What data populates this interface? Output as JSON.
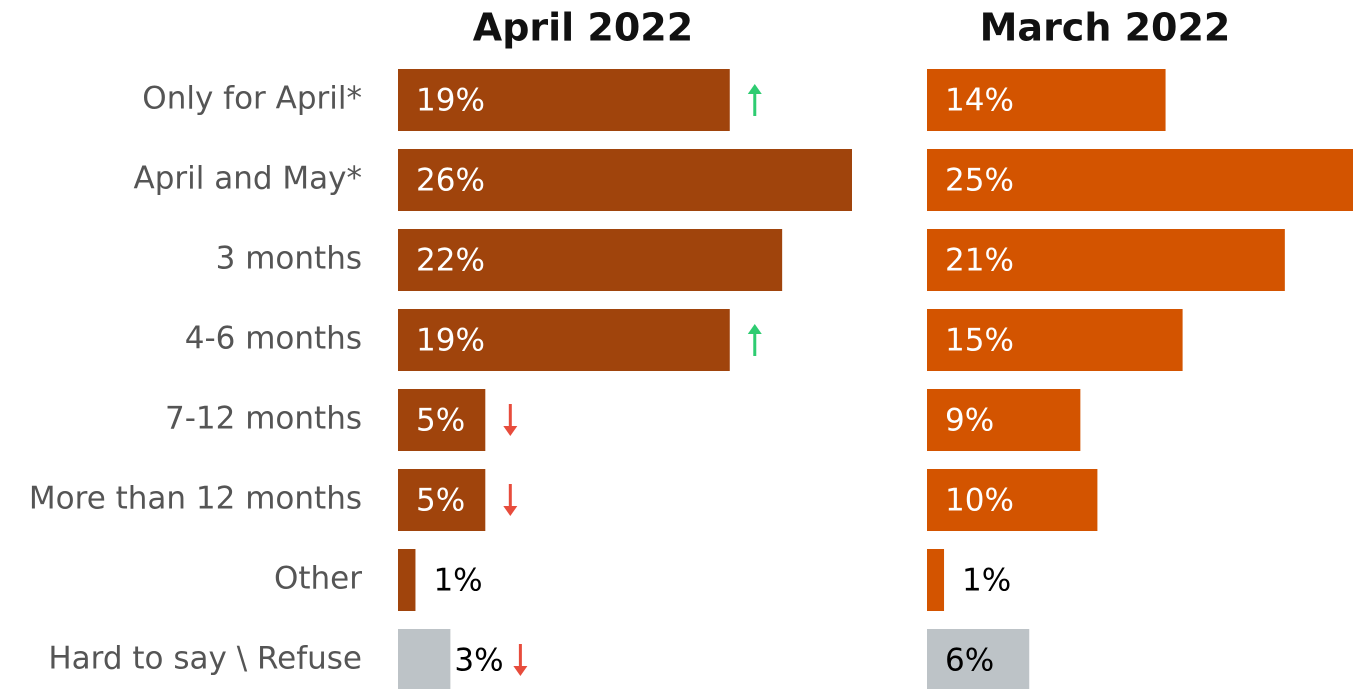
{
  "chart_data": {
    "type": "bar",
    "orientation": "horizontal",
    "categories": [
      "Only for April*",
      "April and May*",
      "3 months",
      "4-6 months",
      "7-12 months",
      "More than 12 months",
      "Other",
      "Hard to say \\ Refuse"
    ],
    "series": [
      {
        "name": "April 2022",
        "colors": [
          "#a0440c",
          "#a0440c",
          "#a0440c",
          "#a0440c",
          "#a0440c",
          "#a0440c",
          "#a0440c",
          "#bdc3c7"
        ],
        "values": [
          19,
          26,
          22,
          19,
          5,
          5,
          1,
          3
        ],
        "value_labels": [
          "19%",
          "26%",
          "22%",
          "19%",
          "5%",
          "5%",
          "1%",
          "3%"
        ],
        "changes": [
          "up",
          null,
          null,
          "up",
          "down",
          "down",
          null,
          "down"
        ]
      },
      {
        "name": "March 2022",
        "colors": [
          "#d35400",
          "#d35400",
          "#d35400",
          "#d35400",
          "#d35400",
          "#d35400",
          "#d35400",
          "#bdc3c7"
        ],
        "values": [
          14,
          25,
          21,
          15,
          9,
          10,
          1,
          6
        ],
        "value_labels": [
          "14%",
          "25%",
          "21%",
          "15%",
          "9%",
          "10%",
          "1%",
          "6%"
        ],
        "changes": [
          null,
          null,
          null,
          null,
          null,
          null,
          null,
          null
        ]
      }
    ],
    "change_colors": {
      "up": "#2ecc71",
      "down": "#e74c3c"
    }
  }
}
